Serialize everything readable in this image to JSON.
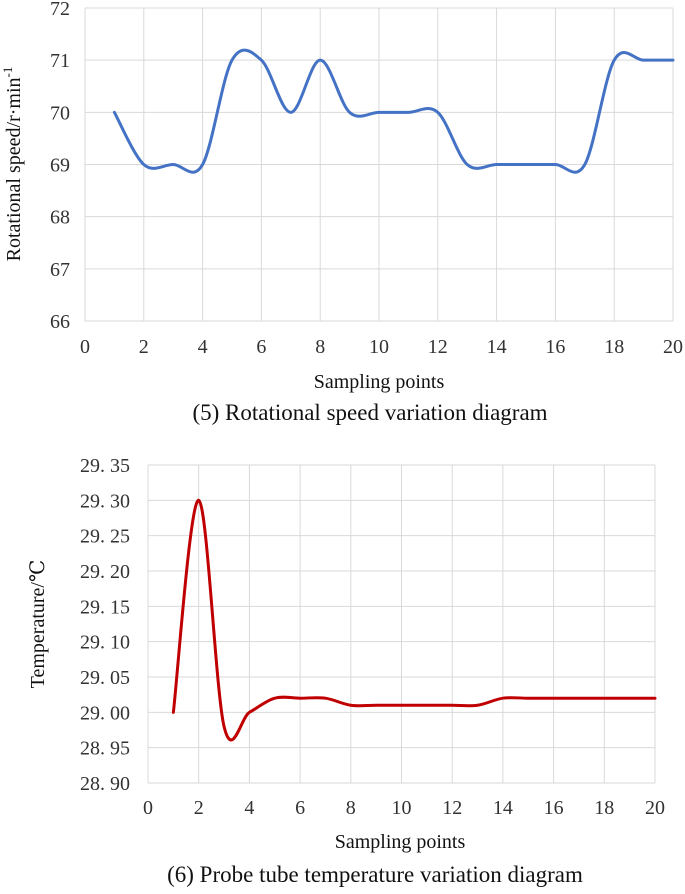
{
  "chart_data": [
    {
      "type": "line",
      "caption": "(5) Rotational speed variation diagram",
      "xlabel": "Sampling points",
      "ylabel": "Rotational speed/r·min",
      "ylabel_sup": "-1",
      "xlim": [
        0,
        20
      ],
      "ylim": [
        66,
        72
      ],
      "xticks": [
        "0",
        "2",
        "4",
        "6",
        "8",
        "10",
        "12",
        "14",
        "16",
        "18",
        "20"
      ],
      "yticks": [
        "66",
        "67",
        "68",
        "69",
        "70",
        "71",
        "72"
      ],
      "grid": true,
      "series": [
        {
          "color": "#4472c4",
          "x": [
            1,
            2,
            3,
            4,
            5,
            6,
            7,
            8,
            9,
            10,
            11,
            12,
            13,
            14,
            15,
            16,
            17,
            18,
            19,
            20
          ],
          "values": [
            70,
            69,
            69,
            69,
            71,
            71,
            70,
            71,
            70,
            70,
            70,
            70,
            69,
            69,
            69,
            69,
            69,
            71,
            71,
            71
          ]
        }
      ]
    },
    {
      "type": "line",
      "caption": "(6) Probe tube temperature variation diagram",
      "xlabel": "Sampling points",
      "ylabel": "Temperature/℃",
      "xlim": [
        0,
        20
      ],
      "ylim": [
        28.9,
        29.35
      ],
      "xticks": [
        "0",
        "2",
        "4",
        "6",
        "8",
        "10",
        "12",
        "14",
        "16",
        "18",
        "20"
      ],
      "yticks": [
        "28. 90",
        "28. 95",
        "29. 00",
        "29. 05",
        "29. 10",
        "29. 15",
        "29. 20",
        "29. 25",
        "29. 30",
        "29. 35"
      ],
      "grid": true,
      "series": [
        {
          "color": "#c00000",
          "x": [
            1,
            2,
            3,
            4,
            5,
            6,
            7,
            8,
            9,
            10,
            11,
            12,
            13,
            14,
            15,
            16,
            17,
            18,
            19,
            20
          ],
          "values": [
            29.0,
            29.3,
            28.98,
            29.0,
            29.02,
            29.02,
            29.02,
            29.01,
            29.01,
            29.01,
            29.01,
            29.01,
            29.01,
            29.02,
            29.02,
            29.02,
            29.02,
            29.02,
            29.02,
            29.02
          ]
        }
      ]
    }
  ]
}
